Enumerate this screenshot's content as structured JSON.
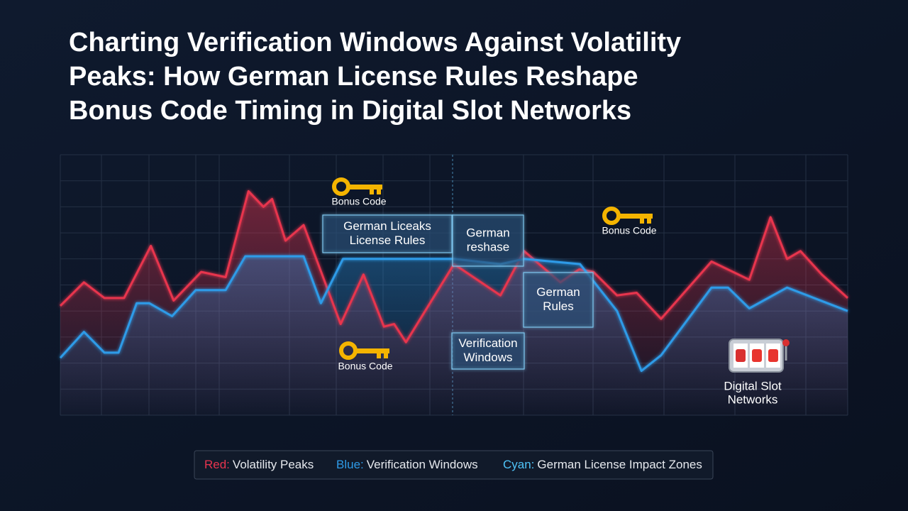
{
  "chart_data": {
    "type": "line",
    "title_lines": [
      "Charting Verification Windows Against Volatility",
      "Peaks: How German License Rules Reshape",
      "Bonus Code Timing in Digital Slot Networks"
    ],
    "xlim": [
      0,
      100
    ],
    "ylim": [
      0,
      10
    ],
    "series": [
      {
        "name": "Volatility Peaks",
        "color": "#e8344e",
        "x": [
          0,
          3.0,
          5.6,
          8.1,
          11.5,
          14.4,
          17.9,
          21.0,
          23.9,
          25.8,
          26.9,
          28.6,
          30.9,
          35.6,
          38.5,
          41.1,
          42.4,
          43.9,
          50.0,
          55.9,
          58.9,
          63.5,
          65.9,
          67.7,
          70.7,
          73.2,
          76.3,
          82.7,
          87.5,
          90.2,
          92.3,
          94.0,
          96.7,
          100
        ],
        "values": [
          4.2,
          5.1,
          4.5,
          4.5,
          6.5,
          4.4,
          5.5,
          5.3,
          8.6,
          8.0,
          8.3,
          6.7,
          7.3,
          3.5,
          5.4,
          3.4,
          3.5,
          2.8,
          5.8,
          4.6,
          6.3,
          5.1,
          5.6,
          5.5,
          4.6,
          4.7,
          3.7,
          5.9,
          5.2,
          7.6,
          6.0,
          6.3,
          5.4,
          4.5
        ]
      },
      {
        "name": "Verification Windows",
        "color": "#2e9be8",
        "x": [
          0,
          3.0,
          5.6,
          7.4,
          9.7,
          11.3,
          14.2,
          17.2,
          21.0,
          23.5,
          30.9,
          33.1,
          35.9,
          50.0,
          55.9,
          58.9,
          66.0,
          70.7,
          73.8,
          76.3,
          82.7,
          84.8,
          87.5,
          92.3,
          100
        ],
        "values": [
          2.2,
          3.2,
          2.4,
          2.4,
          4.3,
          4.3,
          3.8,
          4.8,
          4.8,
          6.1,
          6.1,
          4.3,
          6.0,
          6.0,
          5.8,
          6.0,
          5.8,
          4.0,
          1.7,
          2.3,
          4.9,
          4.9,
          4.1,
          4.9,
          4.0
        ]
      }
    ],
    "annotations": [
      {
        "lines": [
          "German Liceaks",
          "License Rules"
        ]
      },
      {
        "lines": [
          "German",
          "reshase"
        ]
      },
      {
        "lines": [
          "German",
          "Rules"
        ]
      },
      {
        "lines": [
          "Verification",
          "Windows"
        ]
      }
    ],
    "key_labels": [
      "Bonus Code",
      "Bonus Code",
      "Bonus Code"
    ],
    "slot_label": [
      "Digital Slot",
      "Networks"
    ],
    "legend": [
      {
        "key": "Red:",
        "color": "#e8344e"
      },
      {
        "key": "Blue:",
        "color": "#2e9be8"
      },
      {
        "key": "Cyan:",
        "color": "#4fc3f7",
        "label": "German License Impact Zones"
      }
    ]
  }
}
